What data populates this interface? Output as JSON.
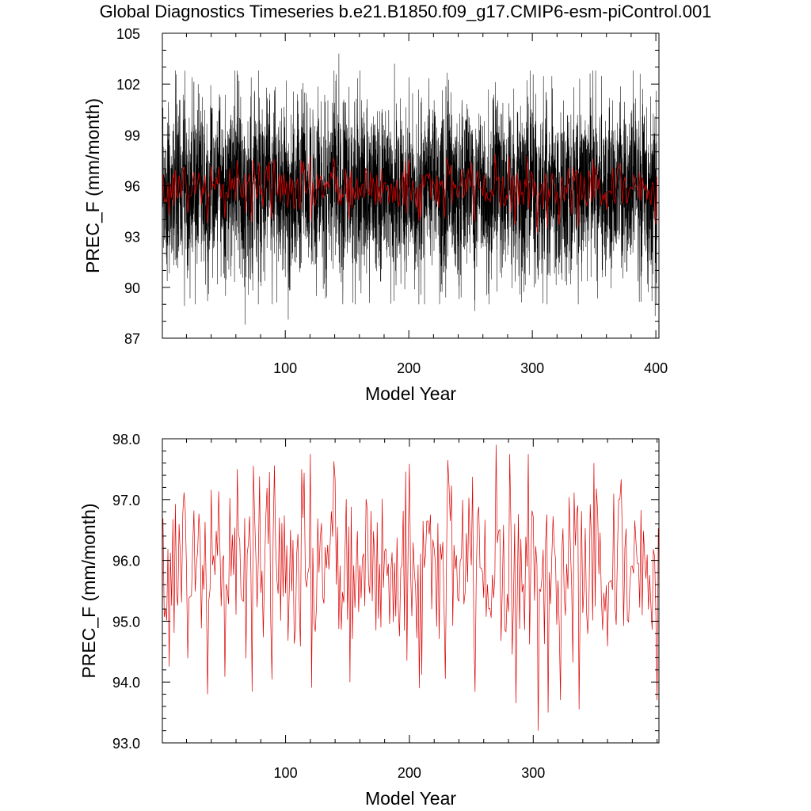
{
  "figure": {
    "title": "Global Diagnostics Timeseries b.e21.B1850.f09_g17.CMIP6-esm-piControl.001"
  },
  "chart_data": [
    {
      "type": "line",
      "name": "monthly-and-annual-precip",
      "title": "",
      "xlabel": "Model Year",
      "ylabel": "PREC_F (mm/month)",
      "xlim": [
        0.5,
        402.5
      ],
      "ylim": [
        87,
        105
      ],
      "xticks": [
        100,
        200,
        300,
        400
      ],
      "xtick_labels": [
        "100",
        "200",
        "300",
        "400"
      ],
      "yticks": [
        87,
        90,
        93,
        96,
        99,
        102,
        105
      ],
      "ytick_labels": [
        "87",
        "90",
        "93",
        "96",
        "99",
        "102",
        "105"
      ],
      "series": [
        {
          "name": "monthly",
          "color": "#000000",
          "resolution": "monthly",
          "x_start": 1,
          "x_end": 401,
          "mean": 96.0,
          "range_min": 87.8,
          "range_max": 103.8,
          "extremes": [
            {
              "x": 18,
              "y": 88.9
            },
            {
              "x": 24,
              "y": 102.4
            },
            {
              "x": 67,
              "y": 87.8
            },
            {
              "x": 102,
              "y": 88.1
            },
            {
              "x": 143,
              "y": 103.8
            },
            {
              "x": 188,
              "y": 103.2
            },
            {
              "x": 253,
              "y": 88.6
            },
            {
              "x": 399,
              "y": 88.3
            },
            {
              "x": 400,
              "y": 101.6
            }
          ]
        },
        {
          "name": "annual",
          "color": "#dd0000",
          "resolution": "annual",
          "x_start": 1,
          "x_end": 401
        }
      ]
    },
    {
      "type": "line",
      "name": "annual-precip",
      "title": "",
      "xlabel": "Model Year",
      "ylabel": "PREC_F (mm/month)",
      "xlim": [
        0.5,
        401.5
      ],
      "ylim": [
        93.0,
        98.0
      ],
      "xticks": [
        100,
        200,
        300
      ],
      "xtick_labels": [
        "100",
        "200",
        "300"
      ],
      "yticks": [
        93.0,
        94.0,
        95.0,
        96.0,
        97.0,
        98.0
      ],
      "ytick_labels": [
        "93.0",
        "94.0",
        "95.0",
        "96.0",
        "97.0",
        "98.0"
      ],
      "series": [
        {
          "name": "annual",
          "color": "#dd0000",
          "x_start": 1,
          "x_end": 401,
          "mean": 95.9,
          "range_min": 93.2,
          "range_max": 97.9,
          "extremes": [
            {
              "x": 37,
              "y": 93.8
            },
            {
              "x": 61,
              "y": 97.5
            },
            {
              "x": 152,
              "y": 94.0
            },
            {
              "x": 208,
              "y": 93.9
            },
            {
              "x": 270,
              "y": 97.9
            },
            {
              "x": 304,
              "y": 93.2
            },
            {
              "x": 312,
              "y": 93.5
            },
            {
              "x": 349,
              "y": 97.6
            },
            {
              "x": 400,
              "y": 93.7
            }
          ]
        }
      ]
    }
  ]
}
